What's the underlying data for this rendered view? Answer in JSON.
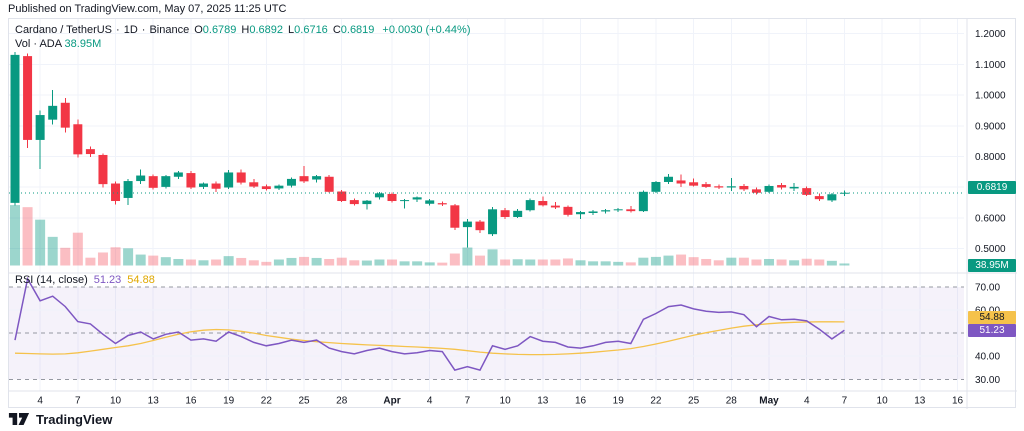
{
  "header": {
    "published": "Published on TradingView.com, May 07, 2025 11:25 UTC"
  },
  "footer": {
    "brand": "TradingView"
  },
  "legend": {
    "title": "Cardano / TetherUS",
    "sep": "·",
    "interval": "1D",
    "exchange": "Binance",
    "o_label": "O",
    "o": "0.6789",
    "h_label": "H",
    "h": "0.6892",
    "l_label": "L",
    "l": "0.6716",
    "c_label": "C",
    "c": "0.6819",
    "change": "+0.0030 (+0.44%)"
  },
  "volume_legend": {
    "label": "Vol · ADA",
    "value": "38.95M"
  },
  "rsi_legend": {
    "label": "RSI (14, close)",
    "value": "51.23",
    "ma_value": "54.88"
  },
  "axes": {
    "price_labels": [
      {
        "text": "1.2000",
        "value": 1.2
      },
      {
        "text": "1.1000",
        "value": 1.1
      },
      {
        "text": "1.0000",
        "value": 1.0
      },
      {
        "text": "0.9000",
        "value": 0.9
      },
      {
        "text": "0.8000",
        "value": 0.8
      },
      {
        "text": "0.7000",
        "value": 0.7
      },
      {
        "text": "0.6000",
        "value": 0.6
      },
      {
        "text": "0.5000",
        "value": 0.5
      }
    ],
    "close_badge": "0.6819",
    "volume_badge": "38.95M",
    "rsi_labels": [
      {
        "text": "70.00",
        "value": 70
      },
      {
        "text": "60.00",
        "value": 60
      },
      {
        "text": "40.00",
        "value": 40
      },
      {
        "text": "30.00",
        "value": 30
      }
    ],
    "rsi_badge": "51.23",
    "rsi_ma_badge": "54.88",
    "time_ticks": [
      {
        "i": 2,
        "label": "4",
        "bold": false
      },
      {
        "i": 5,
        "label": "7",
        "bold": false
      },
      {
        "i": 8,
        "label": "10",
        "bold": false
      },
      {
        "i": 11,
        "label": "13",
        "bold": false
      },
      {
        "i": 14,
        "label": "16",
        "bold": false
      },
      {
        "i": 17,
        "label": "19",
        "bold": false
      },
      {
        "i": 20,
        "label": "22",
        "bold": false
      },
      {
        "i": 23,
        "label": "25",
        "bold": false
      },
      {
        "i": 26,
        "label": "28",
        "bold": false
      },
      {
        "i": 30,
        "label": "Apr",
        "bold": true
      },
      {
        "i": 33,
        "label": "4",
        "bold": false
      },
      {
        "i": 36,
        "label": "7",
        "bold": false
      },
      {
        "i": 39,
        "label": "10",
        "bold": false
      },
      {
        "i": 42,
        "label": "13",
        "bold": false
      },
      {
        "i": 45,
        "label": "16",
        "bold": false
      },
      {
        "i": 48,
        "label": "19",
        "bold": false
      },
      {
        "i": 51,
        "label": "22",
        "bold": false
      },
      {
        "i": 54,
        "label": "25",
        "bold": false
      },
      {
        "i": 57,
        "label": "28",
        "bold": false
      },
      {
        "i": 60,
        "label": "May",
        "bold": true
      },
      {
        "i": 63,
        "label": "4",
        "bold": false
      },
      {
        "i": 66,
        "label": "7",
        "bold": false
      },
      {
        "i": 69,
        "label": "10",
        "bold": false
      },
      {
        "i": 72,
        "label": "13",
        "bold": false
      },
      {
        "i": 75,
        "label": "16",
        "bold": false
      }
    ]
  },
  "colors": {
    "up": "#089981",
    "down": "#f23645",
    "vol_up": "rgba(8,153,129,0.40)",
    "vol_down": "rgba(242,54,69,0.32)",
    "rsi_line": "#7e57c2",
    "rsi_ma_line": "#f5c24b",
    "grid": "#f0f3fa",
    "border": "#e0e3eb",
    "dashed": "#9598a1",
    "band": "rgba(126,87,194,0.08)",
    "text": "#131722",
    "close_line": "#089981"
  },
  "chart_data": {
    "type": "candlestick",
    "title": "Cardano / TetherUS · 1D · Binance",
    "last_ohlc": {
      "open": 0.6789,
      "high": 0.6892,
      "low": 0.6716,
      "close": 0.6819,
      "change": "+0.0030 (+0.44%)"
    },
    "price_axis_range": [
      0.45,
      1.25
    ],
    "price_gridlines": [
      1.2,
      1.1,
      1.0,
      0.9,
      0.8,
      0.7,
      0.6,
      0.5
    ],
    "close_price_line": 0.6819,
    "volume_unit": "millions ADA",
    "current_volume": 38.95,
    "candles_format": [
      "open",
      "high",
      "low",
      "close",
      "volume_m"
    ],
    "candles": [
      [
        0.649,
        1.14,
        0.64,
        1.131,
        1160
      ],
      [
        1.127,
        1.135,
        0.828,
        0.854,
        1120
      ],
      [
        0.854,
        0.95,
        0.76,
        0.935,
        880
      ],
      [
        0.92,
        1.016,
        0.905,
        0.965,
        550
      ],
      [
        0.975,
        0.99,
        0.878,
        0.894,
        340
      ],
      [
        0.905,
        0.921,
        0.796,
        0.807,
        630
      ],
      [
        0.824,
        0.832,
        0.798,
        0.808,
        150
      ],
      [
        0.805,
        0.81,
        0.699,
        0.71,
        250
      ],
      [
        0.712,
        0.718,
        0.644,
        0.655,
        350
      ],
      [
        0.665,
        0.726,
        0.642,
        0.72,
        330
      ],
      [
        0.72,
        0.758,
        0.71,
        0.738,
        210
      ],
      [
        0.736,
        0.742,
        0.692,
        0.698,
        190
      ],
      [
        0.701,
        0.74,
        0.696,
        0.736,
        160
      ],
      [
        0.734,
        0.752,
        0.726,
        0.748,
        125
      ],
      [
        0.746,
        0.752,
        0.694,
        0.699,
        115
      ],
      [
        0.701,
        0.716,
        0.694,
        0.712,
        100
      ],
      [
        0.712,
        0.718,
        0.685,
        0.695,
        115
      ],
      [
        0.699,
        0.756,
        0.694,
        0.748,
        180
      ],
      [
        0.748,
        0.758,
        0.708,
        0.715,
        145
      ],
      [
        0.716,
        0.726,
        0.697,
        0.702,
        100
      ],
      [
        0.703,
        0.709,
        0.689,
        0.694,
        70
      ],
      [
        0.696,
        0.709,
        0.691,
        0.705,
        115
      ],
      [
        0.705,
        0.731,
        0.699,
        0.727,
        145
      ],
      [
        0.736,
        0.769,
        0.714,
        0.719,
        165
      ],
      [
        0.725,
        0.739,
        0.716,
        0.736,
        145
      ],
      [
        0.734,
        0.739,
        0.683,
        0.685,
        125
      ],
      [
        0.686,
        0.691,
        0.652,
        0.655,
        150
      ],
      [
        0.658,
        0.663,
        0.64,
        0.645,
        100
      ],
      [
        0.645,
        0.659,
        0.627,
        0.656,
        95
      ],
      [
        0.667,
        0.684,
        0.66,
        0.68,
        115
      ],
      [
        0.678,
        0.682,
        0.65,
        0.655,
        115
      ],
      [
        0.655,
        0.661,
        0.63,
        0.658,
        80
      ],
      [
        0.66,
        0.67,
        0.652,
        0.667,
        80
      ],
      [
        0.646,
        0.661,
        0.641,
        0.657,
        60
      ],
      [
        0.648,
        0.654,
        0.638,
        0.644,
        55
      ],
      [
        0.641,
        0.646,
        0.56,
        0.568,
        230
      ],
      [
        0.57,
        0.596,
        0.503,
        0.588,
        345
      ],
      [
        0.588,
        0.593,
        0.551,
        0.56,
        190
      ],
      [
        0.547,
        0.636,
        0.541,
        0.628,
        310
      ],
      [
        0.625,
        0.633,
        0.597,
        0.603,
        115
      ],
      [
        0.603,
        0.629,
        0.599,
        0.623,
        120
      ],
      [
        0.625,
        0.663,
        0.621,
        0.658,
        115
      ],
      [
        0.655,
        0.669,
        0.637,
        0.641,
        115
      ],
      [
        0.64,
        0.651,
        0.629,
        0.634,
        115
      ],
      [
        0.636,
        0.641,
        0.604,
        0.61,
        135
      ],
      [
        0.612,
        0.623,
        0.597,
        0.619,
        100
      ],
      [
        0.616,
        0.625,
        0.609,
        0.621,
        80
      ],
      [
        0.621,
        0.629,
        0.614,
        0.625,
        80
      ],
      [
        0.625,
        0.633,
        0.619,
        0.628,
        70
      ],
      [
        0.628,
        0.639,
        0.617,
        0.622,
        60
      ],
      [
        0.622,
        0.689,
        0.619,
        0.685,
        150
      ],
      [
        0.685,
        0.721,
        0.681,
        0.717,
        165
      ],
      [
        0.717,
        0.743,
        0.711,
        0.734,
        190
      ],
      [
        0.722,
        0.741,
        0.701,
        0.712,
        210
      ],
      [
        0.716,
        0.729,
        0.703,
        0.705,
        160
      ],
      [
        0.71,
        0.717,
        0.697,
        0.701,
        125
      ],
      [
        0.703,
        0.709,
        0.694,
        0.699,
        100
      ],
      [
        0.699,
        0.73,
        0.687,
        0.703,
        150
      ],
      [
        0.704,
        0.711,
        0.688,
        0.693,
        150
      ],
      [
        0.693,
        0.699,
        0.677,
        0.682,
        115
      ],
      [
        0.685,
        0.709,
        0.681,
        0.704,
        125
      ],
      [
        0.707,
        0.713,
        0.693,
        0.699,
        115
      ],
      [
        0.696,
        0.713,
        0.687,
        0.701,
        100
      ],
      [
        0.697,
        0.702,
        0.671,
        0.675,
        130
      ],
      [
        0.671,
        0.679,
        0.655,
        0.661,
        115
      ],
      [
        0.657,
        0.681,
        0.651,
        0.677,
        90
      ],
      [
        0.6789,
        0.6892,
        0.6716,
        0.6819,
        38.95
      ]
    ],
    "rsi_settings": "14, close",
    "rsi_current": 51.23,
    "rsi_ma_current": 54.88,
    "rsi_guides_dashed": [
      70,
      50,
      30
    ],
    "rsi_gridlines": [
      60,
      40
    ],
    "rsi": [
      47,
      73.5,
      64,
      66,
      61.5,
      55,
      54,
      49.5,
      45.5,
      49,
      50.5,
      47.5,
      49.5,
      50.5,
      47,
      47.5,
      46.5,
      50.5,
      48.5,
      46,
      44.5,
      45.5,
      47,
      46,
      47,
      43.5,
      42,
      41,
      42.5,
      43.5,
      42,
      41,
      41.5,
      42.5,
      42,
      34,
      35.5,
      34,
      44.5,
      43,
      44.5,
      48.5,
      46.5,
      46,
      44,
      43.5,
      44.5,
      46,
      46.5,
      45.5,
      56,
      58.5,
      61.5,
      62.2,
      60.5,
      59.5,
      59,
      59.2,
      58,
      52.8,
      57.2,
      55.8,
      56,
      55.3,
      51.7,
      47.5,
      51.23
    ],
    "rsi_ma": [
      41.3,
      41.2,
      41,
      40.9,
      41,
      41.5,
      42.2,
      43,
      43.8,
      44.5,
      45.5,
      46.8,
      48.2,
      49.5,
      50.6,
      51.3,
      51.6,
      51.4,
      50.8,
      50,
      49,
      48.2,
      47.4,
      46.8,
      46.3,
      45.9,
      45.5,
      45.2,
      44.9,
      44.7,
      44.5,
      44.2,
      44,
      43.7,
      43.4,
      43,
      42.4,
      41.8,
      41.3,
      41,
      40.8,
      40.7,
      40.7,
      40.8,
      41,
      41.3,
      41.7,
      42.2,
      42.7,
      43.3,
      44.2,
      45.3,
      46.5,
      47.8,
      49.1,
      50.2,
      51.2,
      52.2,
      53,
      53.6,
      54.1,
      54.5,
      54.7,
      54.82,
      54.9,
      54.9,
      54.88
    ]
  }
}
